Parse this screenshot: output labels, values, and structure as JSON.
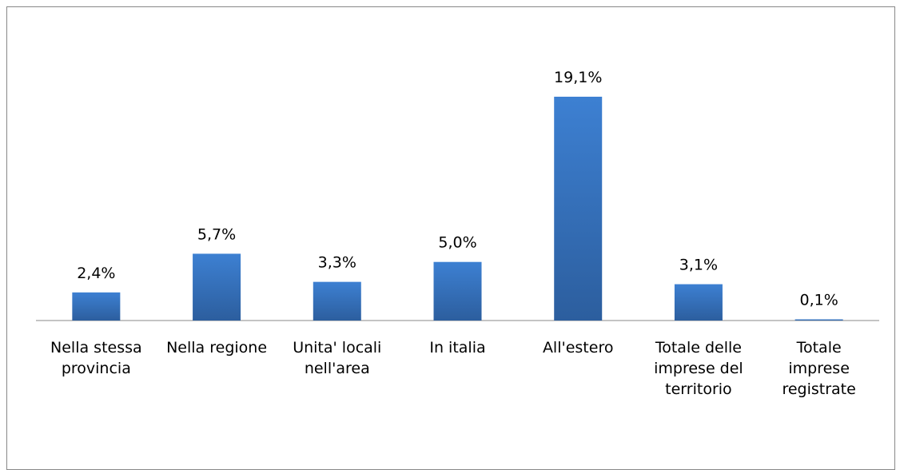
{
  "chart_data": {
    "type": "bar",
    "categories": [
      "Nella stessa provincia",
      "Nella regione",
      "Unita' locali nell'area",
      "In italia",
      "All'estero",
      "Totale delle imprese del territorio",
      "Totale imprese registrate"
    ],
    "values": [
      2.4,
      5.7,
      3.3,
      5.0,
      19.1,
      3.1,
      0.1
    ],
    "value_labels": [
      "2,4%",
      "5,7%",
      "3,3%",
      "5,0%",
      "19,1%",
      "3,1%",
      "0,1%"
    ],
    "color": "#3a78c8"
  }
}
